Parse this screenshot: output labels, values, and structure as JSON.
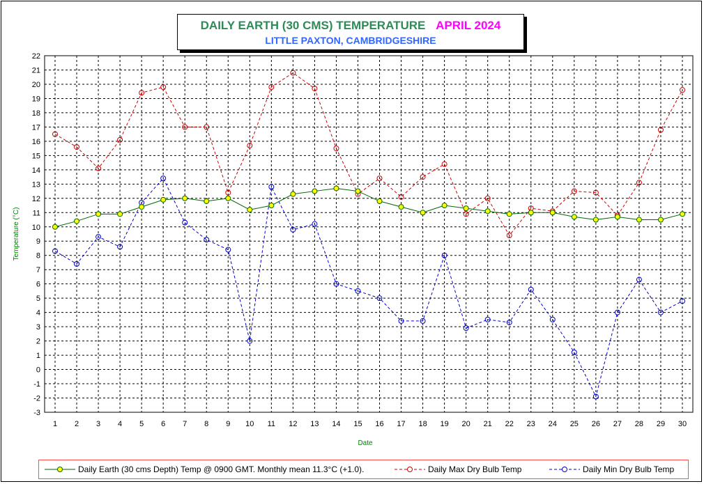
{
  "title": {
    "main": "DAILY EARTH (30 CMS) TEMPERATURE",
    "month": "APRIL 2024",
    "subtitle": "LITTLE PAXTON, CAMBRIDGESHIRE"
  },
  "colors": {
    "earth": "#006600",
    "earth_marker": "#ffff00",
    "max": "#cc0000",
    "min": "#0000cc",
    "title_main": "#2e8b57",
    "title_month": "#ff00ff",
    "subtitle": "#3366ff",
    "axis_label": "#008000",
    "legend_border": "#ff4d4d"
  },
  "chart_data": {
    "type": "line",
    "xlabel": "Date",
    "ylabel": "Temperature (°C)",
    "ylim": [
      -3,
      22
    ],
    "xlim": [
      1,
      30
    ],
    "grid": true,
    "legend_position": "bottom",
    "x": [
      1,
      2,
      3,
      4,
      5,
      6,
      7,
      8,
      9,
      10,
      11,
      12,
      13,
      14,
      15,
      16,
      17,
      18,
      19,
      20,
      21,
      22,
      23,
      24,
      25,
      26,
      27,
      28,
      29,
      30
    ],
    "series": [
      {
        "name": "Daily Earth (30 cms Depth) Temp @ 0900 GMT. Monthly mean 11.3°C (+1.0).",
        "style": "solid",
        "values": [
          10.0,
          10.4,
          10.9,
          10.9,
          11.4,
          11.9,
          12.0,
          11.8,
          12.0,
          11.2,
          11.5,
          12.3,
          12.5,
          12.7,
          12.5,
          11.8,
          11.4,
          11.0,
          11.5,
          11.3,
          11.1,
          10.9,
          11.0,
          11.0,
          10.7,
          10.5,
          10.7,
          10.5,
          10.5,
          10.9
        ]
      },
      {
        "name": "Daily Max Dry Bulb Temp",
        "style": "dashed",
        "values": [
          16.5,
          15.6,
          14.1,
          16.1,
          19.4,
          19.8,
          17.0,
          17.0,
          12.4,
          15.7,
          19.8,
          20.8,
          19.7,
          15.5,
          12.3,
          13.4,
          12.1,
          13.5,
          14.4,
          10.9,
          12.0,
          9.4,
          11.3,
          11.1,
          12.5,
          12.4,
          10.8,
          13.1,
          16.8,
          19.6
        ]
      },
      {
        "name": "Daily Min Dry Bulb Temp",
        "style": "dashed",
        "values": [
          8.3,
          7.4,
          9.3,
          8.6,
          11.7,
          13.4,
          10.3,
          9.1,
          8.4,
          2.0,
          12.8,
          9.8,
          10.2,
          6.0,
          5.5,
          5.0,
          3.4,
          3.4,
          8.0,
          2.9,
          3.5,
          3.3,
          5.6,
          3.5,
          1.2,
          -1.9,
          4.0,
          6.3,
          4.0,
          4.8
        ]
      }
    ]
  }
}
